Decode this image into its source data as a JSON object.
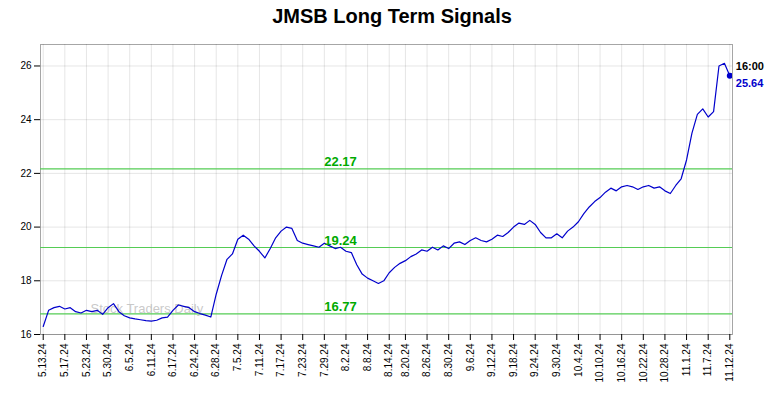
{
  "chart_data": {
    "type": "line",
    "title": "JMSB Long Term Signals",
    "color": "#0000cc",
    "last_point_color": "#0000cc",
    "grid": true,
    "ylim": [
      16.0,
      26.8
    ],
    "yticks": [
      16,
      18,
      20,
      22,
      24,
      26
    ],
    "categories": [
      "5.13.24",
      null,
      null,
      null,
      "5.17.24",
      null,
      null,
      null,
      "5.23.24",
      null,
      null,
      null,
      "5.30.24",
      null,
      null,
      null,
      "6.5.24",
      null,
      null,
      null,
      "6.11.24",
      null,
      null,
      null,
      "6.17.24",
      null,
      null,
      null,
      "6.24.24",
      null,
      null,
      null,
      "6.28.24",
      null,
      null,
      null,
      "7.5.24",
      null,
      null,
      null,
      "7.11.24",
      null,
      null,
      null,
      "7.17.24",
      null,
      null,
      null,
      "7.23.24",
      null,
      null,
      null,
      "7.29.24",
      null,
      null,
      null,
      "8.2.24",
      null,
      null,
      null,
      "8.8.24",
      null,
      null,
      null,
      "8.14.24",
      null,
      null,
      "8.20.24",
      null,
      null,
      null,
      "8.26.24",
      null,
      null,
      null,
      "8.30.24",
      null,
      null,
      null,
      "9.6.24",
      null,
      null,
      null,
      "9.12.24",
      null,
      null,
      null,
      "9.18.24",
      null,
      null,
      null,
      "9.24.24",
      null,
      null,
      null,
      "9.30.24",
      null,
      null,
      null,
      "10.4.24",
      null,
      null,
      null,
      "10.10.24",
      null,
      null,
      null,
      "10.16.24",
      null,
      null,
      null,
      "10.22.24",
      null,
      null,
      null,
      "10.28.24",
      null,
      null,
      null,
      "11.1.24",
      null,
      null,
      null,
      "11.7.24",
      null,
      null,
      null,
      "11.12.24"
    ],
    "values": [
      16.3,
      16.9,
      17.0,
      17.05,
      16.95,
      17.0,
      16.85,
      16.8,
      16.9,
      16.85,
      16.9,
      16.75,
      17.0,
      17.15,
      16.85,
      16.7,
      16.62,
      16.58,
      16.55,
      16.52,
      16.5,
      16.53,
      16.62,
      16.65,
      16.9,
      17.1,
      17.05,
      17.0,
      16.85,
      16.78,
      16.72,
      16.65,
      17.5,
      18.2,
      18.8,
      19.0,
      19.55,
      19.7,
      19.55,
      19.3,
      19.1,
      18.85,
      19.2,
      19.6,
      19.85,
      20.0,
      19.95,
      19.5,
      19.4,
      19.35,
      19.3,
      19.25,
      19.4,
      19.3,
      19.2,
      19.25,
      19.1,
      19.05,
      18.6,
      18.25,
      18.1,
      18.0,
      17.9,
      18.0,
      18.3,
      18.5,
      18.65,
      18.75,
      18.9,
      19.0,
      19.15,
      19.1,
      19.25,
      19.15,
      19.3,
      19.2,
      19.4,
      19.45,
      19.35,
      19.5,
      19.6,
      19.5,
      19.45,
      19.55,
      19.7,
      19.65,
      19.8,
      20.0,
      20.15,
      20.1,
      20.25,
      20.1,
      19.8,
      19.6,
      19.6,
      19.75,
      19.6,
      19.85,
      20.0,
      20.2,
      20.5,
      20.75,
      20.95,
      21.1,
      21.3,
      21.45,
      21.35,
      21.5,
      21.55,
      21.5,
      21.4,
      21.5,
      21.55,
      21.45,
      21.5,
      21.35,
      21.25,
      21.55,
      21.8,
      22.5,
      23.5,
      24.2,
      24.4,
      24.1,
      24.3,
      26.0,
      26.1,
      25.64
    ],
    "hlines": [
      {
        "y": 22.17,
        "label": "22.17",
        "color": "#55cc55",
        "label_color": "#00aa00"
      },
      {
        "y": 19.24,
        "label": "19.24",
        "color": "#55cc55",
        "label_color": "#00aa00"
      },
      {
        "y": 16.77,
        "label": "16.77",
        "color": "#55cc55",
        "label_color": "#00aa00"
      }
    ],
    "end_labels": [
      {
        "text": "16:00",
        "color": "#000000"
      },
      {
        "text": "25.64",
        "color": "#0000cc"
      }
    ],
    "watermark": {
      "text": "Stock Traders Daily",
      "color": "#bbbbbb"
    }
  }
}
